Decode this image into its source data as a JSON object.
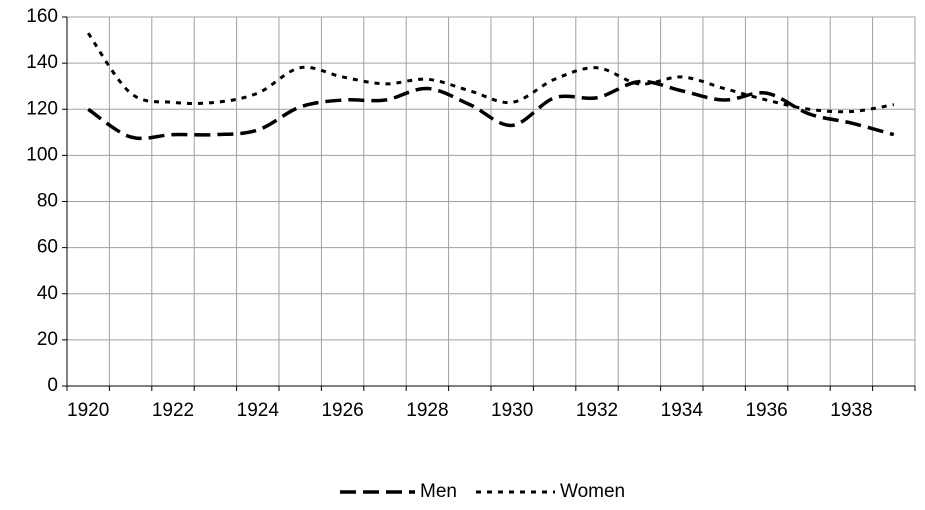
{
  "chart_data": {
    "type": "line",
    "categories": [
      "1920",
      null,
      "1922",
      null,
      "1924",
      null,
      "1926",
      null,
      "1928",
      null,
      "1930",
      null,
      "1932",
      null,
      "1934",
      null,
      "1936",
      null,
      "1938",
      null
    ],
    "series": [
      {
        "name": "Men",
        "color": "#000000",
        "dash": "long-dash",
        "values": [
          120,
          108,
          109,
          109,
          111,
          121,
          124,
          124,
          129,
          122,
          113,
          125,
          125,
          132,
          128,
          124,
          127,
          118,
          114,
          109
        ]
      },
      {
        "name": "Women",
        "color": "#000000",
        "dash": "short-dash",
        "values": [
          153,
          127,
          123,
          123,
          127,
          138,
          134,
          131,
          133,
          128,
          123,
          133,
          138,
          131,
          134,
          129,
          124,
          120,
          119,
          122
        ]
      }
    ],
    "ylim": [
      0,
      160
    ],
    "yticks": [
      0,
      20,
      40,
      60,
      80,
      100,
      120,
      140,
      160
    ],
    "grid": true,
    "legend": "bottom"
  }
}
